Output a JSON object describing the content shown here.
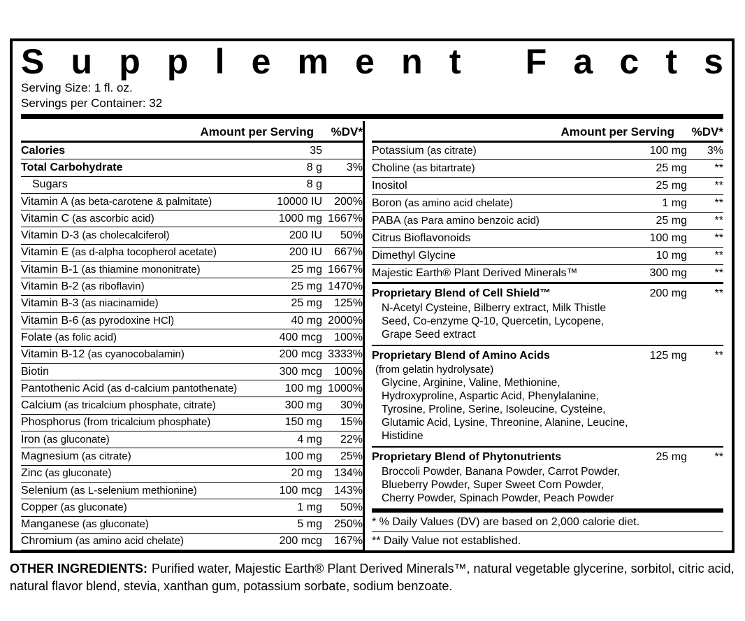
{
  "title": "Supplement Facts",
  "serving": {
    "size": "Serving Size: 1 fl. oz.",
    "per_container": "Servings per Container: 32"
  },
  "table": {
    "amount_header": "Amount per Serving",
    "dv_header": "%DV*",
    "left_rows": [
      {
        "name": "Calories",
        "amount": "35",
        "dv": "",
        "bold": true
      },
      {
        "name": "Total Carbohydrate",
        "amount": "8 g",
        "dv": "3%",
        "bold": true
      },
      {
        "name": "Sugars",
        "amount": "8 g",
        "dv": "",
        "indent": true
      },
      {
        "name": "Vitamin A",
        "detail": "(as beta-carotene & palmitate)",
        "amount": "10000 IU",
        "dv": "200%"
      },
      {
        "name": "Vitamin C",
        "detail": "(as ascorbic acid)",
        "amount": "1000 mg",
        "dv": "1667%"
      },
      {
        "name": "Vitamin D-3",
        "detail": "(as cholecalciferol)",
        "amount": "200 IU",
        "dv": "50%"
      },
      {
        "name": "Vitamin E",
        "detail": "(as d-alpha tocopherol acetate)",
        "amount": "200 IU",
        "dv": "667%"
      },
      {
        "name": "Vitamin B-1",
        "detail": "(as thiamine mononitrate)",
        "amount": "25 mg",
        "dv": "1667%"
      },
      {
        "name": "Vitamin B-2",
        "detail": "(as riboflavin)",
        "amount": "25 mg",
        "dv": "1470%"
      },
      {
        "name": "Vitamin B-3",
        "detail": "(as niacinamide)",
        "amount": "25 mg",
        "dv": "125%"
      },
      {
        "name": "Vitamin B-6",
        "detail": "(as pyrodoxine HCl)",
        "amount": "40 mg",
        "dv": "2000%"
      },
      {
        "name": "Folate",
        "detail": "(as folic acid)",
        "amount": "400 mcg",
        "dv": "100%"
      },
      {
        "name": "Vitamin B-12",
        "detail": "(as cyanocobalamin)",
        "amount": "200 mcg",
        "dv": "3333%"
      },
      {
        "name": "Biotin",
        "amount": "300 mcg",
        "dv": "100%"
      },
      {
        "name": "Pantothenic Acid",
        "detail": "(as d-calcium pantothenate)",
        "amount": "100 mg",
        "dv": "1000%"
      },
      {
        "name": "Calcium",
        "detail": "(as tricalcium phosphate, citrate)",
        "amount": "300 mg",
        "dv": "30%"
      },
      {
        "name": "Phosphorus",
        "detail": "(from tricalcium phosphate)",
        "amount": "150 mg",
        "dv": "15%"
      },
      {
        "name": "Iron",
        "detail": "(as gluconate)",
        "amount": "4 mg",
        "dv": "22%"
      },
      {
        "name": "Magnesium",
        "detail": "(as citrate)",
        "amount": "100 mg",
        "dv": "25%"
      },
      {
        "name": "Zinc",
        "detail": "(as gluconate)",
        "amount": "20 mg",
        "dv": "134%"
      },
      {
        "name": "Selenium",
        "detail": "(as L-selenium methionine)",
        "amount": "100 mcg",
        "dv": "143%"
      },
      {
        "name": "Copper",
        "detail": "(as gluconate)",
        "amount": "1 mg",
        "dv": "50%"
      },
      {
        "name": "Manganese",
        "detail": "(as gluconate)",
        "amount": "5 mg",
        "dv": "250%"
      },
      {
        "name": "Chromium",
        "detail": "(as amino acid chelate)",
        "amount": "200 mcg",
        "dv": "167%"
      }
    ],
    "right_rows": [
      {
        "name": "Potassium",
        "detail": "(as citrate)",
        "amount": "100 mg",
        "dv": "3%"
      },
      {
        "name": "Choline",
        "detail": "(as bitartrate)",
        "amount": "25 mg",
        "dv": "**"
      },
      {
        "name": "Inositol",
        "amount": "25 mg",
        "dv": "**"
      },
      {
        "name": "Boron",
        "detail": "(as amino acid chelate)",
        "amount": "1 mg",
        "dv": "**"
      },
      {
        "name": "PABA",
        "detail": "(as Para amino benzoic acid)",
        "amount": "25 mg",
        "dv": "**"
      },
      {
        "name": "Citrus Bioflavonoids",
        "amount": "100 mg",
        "dv": "**"
      },
      {
        "name": "Dimethyl Glycine",
        "amount": "10 mg",
        "dv": "**"
      },
      {
        "name": "Majestic Earth® Plant Derived Minerals™",
        "amount": "300 mg",
        "dv": "**"
      }
    ],
    "blends": [
      {
        "name": "Proprietary Blend of Cell Shield™",
        "amount": "200 mg",
        "dv": "**",
        "ingredients": "N-Acetyl Cysteine, Bilberry extract, Milk Thistle Seed, Co-enzyme Q-10, Quercetin, Lycopene, Grape Seed extract"
      },
      {
        "name": "Proprietary Blend of Amino Acids",
        "amount": "125 mg",
        "dv": "**",
        "note": "(from gelatin hydrolysate)",
        "ingredients": "Glycine, Arginine, Valine, Methionine, Hydroxyproline, Aspartic Acid, Phenylalanine, Tyrosine, Proline, Serine, Isoleucine, Cysteine, Glutamic Acid, Lysine, Threonine, Alanine, Leucine, Histidine"
      },
      {
        "name": "Proprietary Blend of Phytonutrients",
        "amount": "25 mg",
        "dv": "**",
        "ingredients": "Broccoli Powder, Banana Powder, Carrot Powder, Blueberry Powder, Super Sweet Corn Powder, Cherry Powder, Spinach Powder, Peach Powder"
      }
    ],
    "footnotes": [
      "* % Daily Values (DV) are based on 2,000 calorie diet.",
      "** Daily Value not established."
    ]
  },
  "other_ingredients": {
    "label": "OTHER INGREDIENTS:",
    "text": "Purified water, Majestic Earth® Plant Derived Minerals™, natural vegetable glycerine, sorbitol, citric acid, natural flavor blend, stevia, xanthan gum, potassium sorbate, sodium benzoate."
  },
  "colors": {
    "ink": "#000000",
    "background": "#ffffff"
  }
}
